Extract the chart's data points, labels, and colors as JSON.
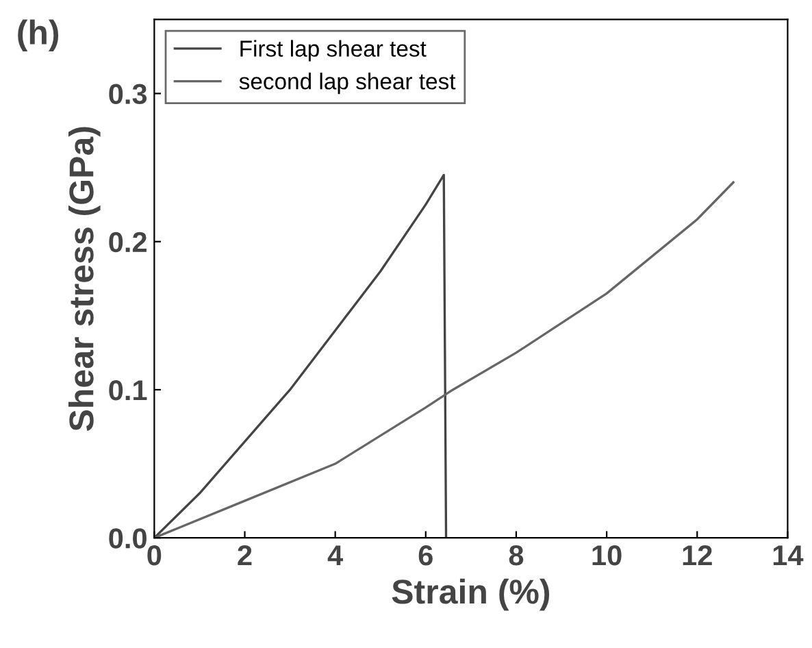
{
  "chart_data": {
    "type": "line",
    "title": "(h)",
    "xlabel": "Strain (%)",
    "ylabel": "Shear stress (GPa)",
    "xlim": [
      0,
      14
    ],
    "xticks": [
      0,
      2,
      4,
      6,
      8,
      10,
      12,
      14
    ],
    "ylim": [
      0,
      0.35
    ],
    "yticks": [
      {
        "value": 0,
        "label": "0.0"
      },
      0.1,
      0.2,
      0.3
    ],
    "grid": false,
    "legend": "top left",
    "marker": "none",
    "line_style": "solid",
    "series": [
      {
        "name": "First lap shear test",
        "color": "#444444",
        "x": [
          0,
          1,
          2,
          3,
          4,
          5,
          6,
          6.4,
          6.45
        ],
        "values": [
          0,
          0.03,
          0.065,
          0.1,
          0.14,
          0.18,
          0.225,
          0.245,
          0
        ]
      },
      {
        "name": "second lap shear test",
        "color": "#666666",
        "x": [
          0,
          2,
          4,
          6,
          6.6,
          8,
          10,
          12,
          12.8
        ],
        "values": [
          0,
          0.025,
          0.05,
          0.088,
          0.1,
          0.125,
          0.165,
          0.215,
          0.24
        ]
      }
    ]
  }
}
